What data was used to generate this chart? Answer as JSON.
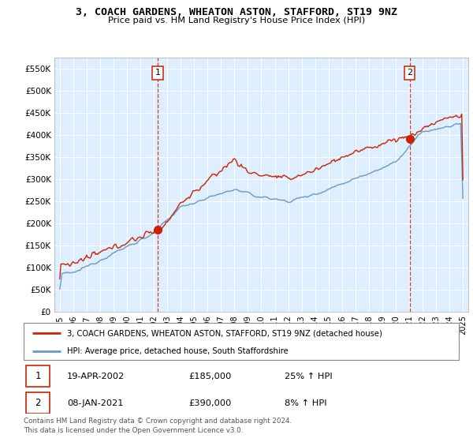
{
  "title": "3, COACH GARDENS, WHEATON ASTON, STAFFORD, ST19 9NZ",
  "subtitle": "Price paid vs. HM Land Registry's House Price Index (HPI)",
  "ylabel_ticks": [
    "£0",
    "£50K",
    "£100K",
    "£150K",
    "£200K",
    "£250K",
    "£300K",
    "£350K",
    "£400K",
    "£450K",
    "£500K",
    "£550K"
  ],
  "ytick_values": [
    0,
    50000,
    100000,
    150000,
    200000,
    250000,
    300000,
    350000,
    400000,
    450000,
    500000,
    550000
  ],
  "ylim": [
    0,
    575000
  ],
  "xlim_start": 1994.6,
  "xlim_end": 2025.4,
  "hpi_color": "#6699cc",
  "price_color": "#cc2200",
  "bg_color": "#ddeeff",
  "transaction1": {
    "label": "1",
    "date_num": 2002.29,
    "price": 185000,
    "text": "19-APR-2002",
    "amount": "£185,000",
    "pct": "25% ↑ HPI"
  },
  "transaction2": {
    "label": "2",
    "date_num": 2021.03,
    "price": 390000,
    "text": "08-JAN-2021",
    "amount": "£390,000",
    "pct": "8% ↑ HPI"
  },
  "legend_line1": "3, COACH GARDENS, WHEATON ASTON, STAFFORD, ST19 9NZ (detached house)",
  "legend_line2": "HPI: Average price, detached house, South Staffordshire",
  "footnote": "Contains HM Land Registry data © Crown copyright and database right 2024.\nThis data is licensed under the Open Government Licence v3.0.",
  "xtick_years": [
    1995,
    1996,
    1997,
    1998,
    1999,
    2000,
    2001,
    2002,
    2003,
    2004,
    2005,
    2006,
    2007,
    2008,
    2009,
    2010,
    2011,
    2012,
    2013,
    2014,
    2015,
    2016,
    2017,
    2018,
    2019,
    2020,
    2021,
    2022,
    2023,
    2024,
    2025
  ]
}
